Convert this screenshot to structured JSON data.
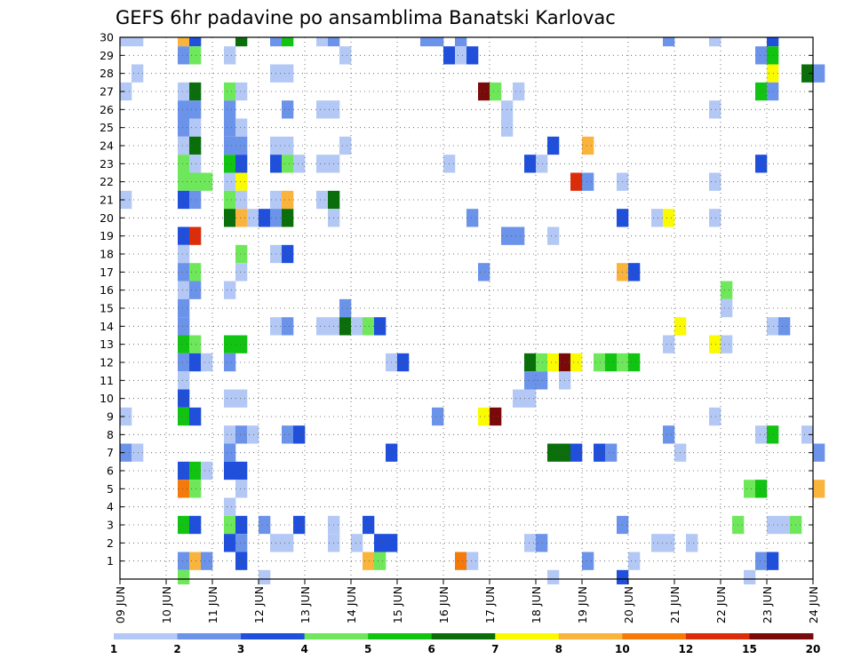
{
  "chart_data": {
    "type": "heatmap",
    "title": "GEFS 6hr padavine po ansamblima Banatski Karlovac",
    "xlabel": "",
    "ylabel": "",
    "x_tick_labels": [
      "09 JUN",
      "10 JUN",
      "11 JUN",
      "12 JUN",
      "13 JUN",
      "14 JUN",
      "15 JUN",
      "16 JUN",
      "17 JUN",
      "18 JUN",
      "19 JUN",
      "20 JUN",
      "21 JUN",
      "22 JUN",
      "23 JUN",
      "24 JUN"
    ],
    "xlim_days": [
      0,
      15
    ],
    "ylim": [
      0,
      30
    ],
    "y_ticks": [
      1,
      2,
      3,
      4,
      5,
      6,
      7,
      8,
      9,
      10,
      11,
      12,
      13,
      14,
      15,
      16,
      17,
      18,
      19,
      20,
      21,
      22,
      23,
      24,
      25,
      26,
      27,
      28,
      29,
      30
    ],
    "grid": true,
    "colorbar": {
      "placement": "bottom",
      "boundaries": [
        "1",
        "2",
        "3",
        "4",
        "5",
        "6",
        "7",
        "8",
        "10",
        "12",
        "15",
        "20"
      ],
      "colors": [
        "#b3c8f5",
        "#6c93ea",
        "#1f4fdb",
        "#6ee85a",
        "#12c412",
        "#0a6e0a",
        "#fafa00",
        "#fab43c",
        "#f57a0a",
        "#dc2d0a",
        "#7a0a0a"
      ]
    },
    "cells_note": "each cell: [day offset from 09 JUN 00z, ensemble member, color class 0-10]",
    "cells": [
      [
        0.0,
        30,
        0
      ],
      [
        0.25,
        30,
        0
      ],
      [
        1.25,
        30,
        7
      ],
      [
        1.5,
        30,
        2
      ],
      [
        2.5,
        30,
        5
      ],
      [
        3.25,
        30,
        1
      ],
      [
        3.5,
        30,
        4
      ],
      [
        4.25,
        30,
        0
      ],
      [
        4.5,
        30,
        1
      ],
      [
        6.5,
        30,
        1
      ],
      [
        6.75,
        30,
        1
      ],
      [
        7.25,
        30,
        1
      ],
      [
        11.75,
        30,
        1
      ],
      [
        12.75,
        30,
        0
      ],
      [
        14.0,
        30,
        2
      ],
      [
        1.25,
        29,
        1
      ],
      [
        1.5,
        29,
        3
      ],
      [
        2.25,
        29,
        0
      ],
      [
        4.75,
        29,
        0
      ],
      [
        7.0,
        29,
        2
      ],
      [
        7.25,
        29,
        0
      ],
      [
        7.5,
        29,
        2
      ],
      [
        13.75,
        29,
        1
      ],
      [
        14.0,
        29,
        4
      ],
      [
        0.25,
        28,
        0
      ],
      [
        3.25,
        28,
        0
      ],
      [
        3.5,
        28,
        0
      ],
      [
        14.0,
        28,
        6
      ],
      [
        14.75,
        28,
        5
      ],
      [
        15.0,
        28,
        1
      ],
      [
        0.0,
        27,
        0
      ],
      [
        1.25,
        27,
        0
      ],
      [
        1.5,
        27,
        5
      ],
      [
        2.25,
        27,
        3
      ],
      [
        2.5,
        27,
        0
      ],
      [
        7.75,
        27,
        10
      ],
      [
        8.0,
        27,
        3
      ],
      [
        8.5,
        27,
        0
      ],
      [
        13.75,
        27,
        4
      ],
      [
        14.0,
        27,
        1
      ],
      [
        1.25,
        26,
        1
      ],
      [
        1.5,
        26,
        1
      ],
      [
        2.25,
        26,
        1
      ],
      [
        3.5,
        26,
        1
      ],
      [
        4.25,
        26,
        0
      ],
      [
        4.5,
        26,
        0
      ],
      [
        8.25,
        26,
        0
      ],
      [
        12.75,
        26,
        0
      ],
      [
        1.25,
        25,
        1
      ],
      [
        1.5,
        25,
        0
      ],
      [
        2.25,
        25,
        1
      ],
      [
        2.5,
        25,
        0
      ],
      [
        8.25,
        25,
        0
      ],
      [
        1.25,
        24,
        0
      ],
      [
        1.5,
        24,
        5
      ],
      [
        2.25,
        24,
        1
      ],
      [
        2.5,
        24,
        1
      ],
      [
        3.25,
        24,
        0
      ],
      [
        3.5,
        24,
        0
      ],
      [
        4.75,
        24,
        0
      ],
      [
        9.25,
        24,
        2
      ],
      [
        10.0,
        24,
        7
      ],
      [
        1.25,
        23,
        3
      ],
      [
        1.5,
        23,
        0
      ],
      [
        2.25,
        23,
        4
      ],
      [
        2.5,
        23,
        2
      ],
      [
        3.25,
        23,
        2
      ],
      [
        3.5,
        23,
        3
      ],
      [
        3.75,
        23,
        0
      ],
      [
        4.25,
        23,
        0
      ],
      [
        4.5,
        23,
        0
      ],
      [
        7.0,
        23,
        0
      ],
      [
        8.75,
        23,
        2
      ],
      [
        9.0,
        23,
        0
      ],
      [
        13.75,
        23,
        2
      ],
      [
        1.25,
        22,
        3
      ],
      [
        1.5,
        22,
        3
      ],
      [
        1.75,
        22,
        3
      ],
      [
        2.25,
        22,
        0
      ],
      [
        2.5,
        22,
        6
      ],
      [
        9.75,
        22,
        9
      ],
      [
        10.0,
        22,
        1
      ],
      [
        10.75,
        22,
        0
      ],
      [
        12.75,
        22,
        0
      ],
      [
        0.0,
        21,
        0
      ],
      [
        1.25,
        21,
        2
      ],
      [
        1.5,
        21,
        1
      ],
      [
        2.25,
        21,
        3
      ],
      [
        2.5,
        21,
        0
      ],
      [
        3.25,
        21,
        0
      ],
      [
        3.5,
        21,
        7
      ],
      [
        4.25,
        21,
        0
      ],
      [
        4.5,
        21,
        5
      ],
      [
        2.25,
        20,
        5
      ],
      [
        2.5,
        20,
        7
      ],
      [
        2.75,
        20,
        0
      ],
      [
        3.0,
        20,
        2
      ],
      [
        3.25,
        20,
        1
      ],
      [
        3.5,
        20,
        5
      ],
      [
        4.5,
        20,
        0
      ],
      [
        7.5,
        20,
        1
      ],
      [
        10.75,
        20,
        2
      ],
      [
        11.5,
        20,
        0
      ],
      [
        11.75,
        20,
        6
      ],
      [
        12.75,
        20,
        0
      ],
      [
        1.25,
        19,
        2
      ],
      [
        1.5,
        19,
        9
      ],
      [
        8.25,
        19,
        1
      ],
      [
        8.5,
        19,
        1
      ],
      [
        9.25,
        19,
        0
      ],
      [
        1.25,
        18,
        0
      ],
      [
        2.5,
        18,
        3
      ],
      [
        3.25,
        18,
        0
      ],
      [
        3.5,
        18,
        2
      ],
      [
        1.25,
        17,
        1
      ],
      [
        1.5,
        17,
        3
      ],
      [
        2.5,
        17,
        0
      ],
      [
        7.75,
        17,
        1
      ],
      [
        10.75,
        17,
        7
      ],
      [
        11.0,
        17,
        2
      ],
      [
        1.25,
        16,
        0
      ],
      [
        1.5,
        16,
        1
      ],
      [
        2.25,
        16,
        0
      ],
      [
        13.0,
        16,
        3
      ],
      [
        1.25,
        15,
        1
      ],
      [
        4.75,
        15,
        1
      ],
      [
        13.0,
        15,
        0
      ],
      [
        1.25,
        14,
        1
      ],
      [
        3.25,
        14,
        0
      ],
      [
        3.5,
        14,
        1
      ],
      [
        4.25,
        14,
        0
      ],
      [
        4.5,
        14,
        0
      ],
      [
        4.75,
        14,
        5
      ],
      [
        5.0,
        14,
        0
      ],
      [
        5.25,
        14,
        3
      ],
      [
        5.5,
        14,
        2
      ],
      [
        12.0,
        14,
        6
      ],
      [
        14.0,
        14,
        0
      ],
      [
        14.25,
        14,
        1
      ],
      [
        1.25,
        13,
        4
      ],
      [
        1.5,
        13,
        3
      ],
      [
        2.25,
        13,
        4
      ],
      [
        2.5,
        13,
        4
      ],
      [
        11.75,
        13,
        0
      ],
      [
        12.75,
        13,
        6
      ],
      [
        13.0,
        13,
        0
      ],
      [
        1.25,
        12,
        1
      ],
      [
        1.5,
        12,
        2
      ],
      [
        1.75,
        12,
        0
      ],
      [
        2.25,
        12,
        1
      ],
      [
        5.75,
        12,
        0
      ],
      [
        6.0,
        12,
        2
      ],
      [
        8.75,
        12,
        5
      ],
      [
        9.0,
        12,
        3
      ],
      [
        9.25,
        12,
        6
      ],
      [
        9.5,
        12,
        10
      ],
      [
        9.75,
        12,
        6
      ],
      [
        10.25,
        12,
        3
      ],
      [
        10.5,
        12,
        4
      ],
      [
        10.75,
        12,
        3
      ],
      [
        11.0,
        12,
        4
      ],
      [
        1.25,
        11,
        0
      ],
      [
        8.75,
        11,
        1
      ],
      [
        9.0,
        11,
        1
      ],
      [
        9.5,
        11,
        0
      ],
      [
        1.25,
        10,
        2
      ],
      [
        2.25,
        10,
        0
      ],
      [
        2.5,
        10,
        0
      ],
      [
        8.5,
        10,
        0
      ],
      [
        8.75,
        10,
        0
      ],
      [
        0.0,
        9,
        0
      ],
      [
        1.25,
        9,
        4
      ],
      [
        1.5,
        9,
        2
      ],
      [
        6.75,
        9,
        1
      ],
      [
        7.75,
        9,
        6
      ],
      [
        8.0,
        9,
        10
      ],
      [
        12.75,
        9,
        0
      ],
      [
        2.25,
        8,
        0
      ],
      [
        2.5,
        8,
        1
      ],
      [
        2.75,
        8,
        0
      ],
      [
        3.5,
        8,
        1
      ],
      [
        3.75,
        8,
        2
      ],
      [
        11.75,
        8,
        1
      ],
      [
        13.75,
        8,
        0
      ],
      [
        14.0,
        8,
        4
      ],
      [
        14.75,
        8,
        0
      ],
      [
        0.0,
        7,
        1
      ],
      [
        0.25,
        7,
        0
      ],
      [
        2.25,
        7,
        1
      ],
      [
        5.75,
        7,
        2
      ],
      [
        9.25,
        7,
        5
      ],
      [
        9.5,
        7,
        5
      ],
      [
        9.75,
        7,
        2
      ],
      [
        10.25,
        7,
        2
      ],
      [
        10.5,
        7,
        1
      ],
      [
        12.0,
        7,
        0
      ],
      [
        15.0,
        7,
        1
      ],
      [
        1.25,
        6,
        2
      ],
      [
        1.5,
        6,
        4
      ],
      [
        1.75,
        6,
        0
      ],
      [
        2.25,
        6,
        2
      ],
      [
        2.5,
        6,
        2
      ],
      [
        1.25,
        5,
        8
      ],
      [
        1.5,
        5,
        3
      ],
      [
        2.5,
        5,
        0
      ],
      [
        13.5,
        5,
        3
      ],
      [
        13.75,
        5,
        4
      ],
      [
        15.0,
        5,
        7
      ],
      [
        2.25,
        4,
        0
      ],
      [
        1.25,
        3,
        4
      ],
      [
        1.5,
        3,
        2
      ],
      [
        2.25,
        3,
        3
      ],
      [
        2.5,
        3,
        2
      ],
      [
        3.0,
        3,
        1
      ],
      [
        3.75,
        3,
        2
      ],
      [
        4.5,
        3,
        0
      ],
      [
        5.25,
        3,
        2
      ],
      [
        10.75,
        3,
        1
      ],
      [
        13.25,
        3,
        3
      ],
      [
        14.0,
        3,
        0
      ],
      [
        14.25,
        3,
        0
      ],
      [
        14.5,
        3,
        3
      ],
      [
        2.25,
        2,
        2
      ],
      [
        2.5,
        2,
        1
      ],
      [
        3.25,
        2,
        0
      ],
      [
        3.5,
        2,
        0
      ],
      [
        4.5,
        2,
        0
      ],
      [
        5.0,
        2,
        0
      ],
      [
        5.5,
        2,
        2
      ],
      [
        5.75,
        2,
        2
      ],
      [
        8.75,
        2,
        0
      ],
      [
        9.0,
        2,
        1
      ],
      [
        11.5,
        2,
        0
      ],
      [
        11.75,
        2,
        0
      ],
      [
        12.25,
        2,
        0
      ],
      [
        1.25,
        1,
        1
      ],
      [
        1.5,
        1,
        7
      ],
      [
        1.75,
        1,
        1
      ],
      [
        2.5,
        1,
        2
      ],
      [
        5.25,
        1,
        7
      ],
      [
        5.5,
        1,
        3
      ],
      [
        7.25,
        1,
        8
      ],
      [
        7.5,
        1,
        0
      ],
      [
        10.0,
        1,
        1
      ],
      [
        11.0,
        1,
        0
      ],
      [
        13.75,
        1,
        1
      ],
      [
        14.0,
        1,
        2
      ],
      [
        1.25,
        0,
        3
      ],
      [
        3.0,
        0,
        0
      ],
      [
        9.25,
        0,
        0
      ],
      [
        10.75,
        0,
        2
      ],
      [
        13.5,
        0,
        0
      ]
    ]
  }
}
